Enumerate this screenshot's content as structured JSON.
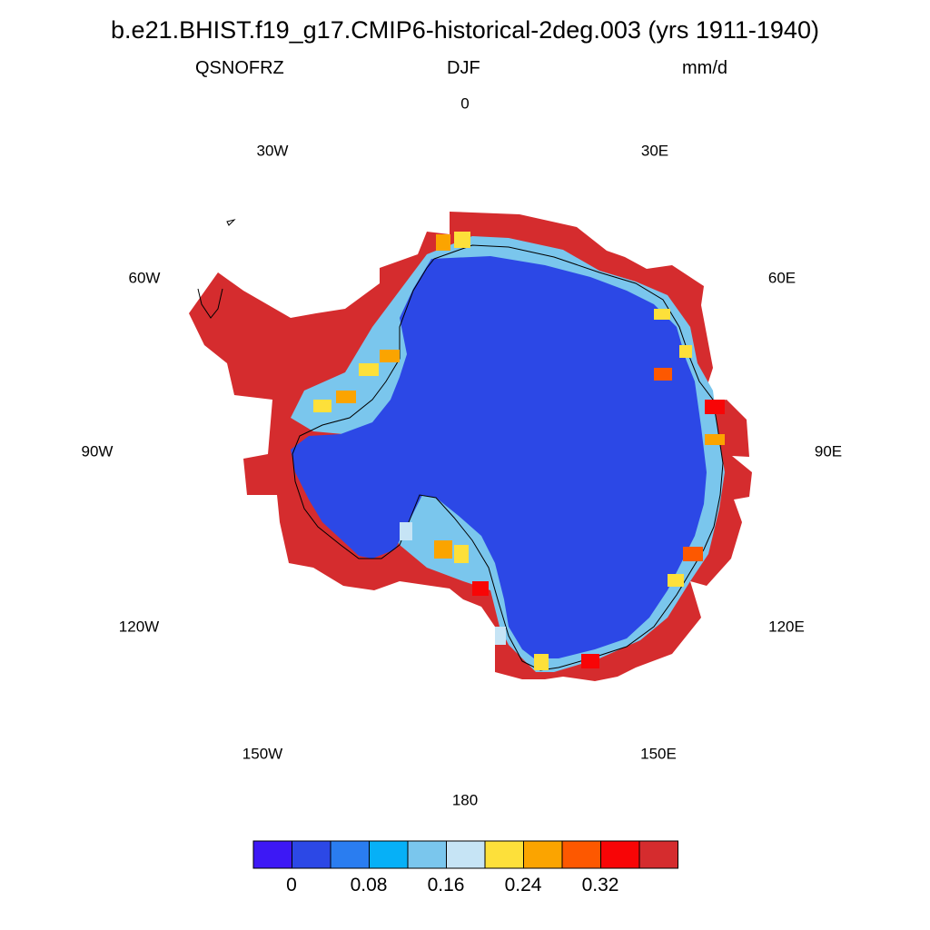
{
  "title": "b.e21.BHIST.f19_g17.CMIP6-historical-2deg.003 (yrs 1911-1940)",
  "variable": "QSNOFRZ",
  "season": "DJF",
  "units": "mm/d",
  "longitude_labels": {
    "l0": "0",
    "l30e": "30E",
    "l60e": "60E",
    "l90e": "90E",
    "l120e": "120E",
    "l150e": "150E",
    "l180": "180",
    "l150w": "150W",
    "l120w": "120W",
    "l90w": "90W",
    "l60w": "60W",
    "l30w": "30W"
  },
  "colorbar": {
    "colors": [
      "#3d18f5",
      "#2c48e6",
      "#2a7df0",
      "#06b0f7",
      "#7ac6ed",
      "#c6e4f5",
      "#fde03a",
      "#fba400",
      "#fd5800",
      "#f80506",
      "#d52c2e"
    ],
    "tick_labels": [
      "0",
      "0.08",
      "0.16",
      "0.24",
      "0.32"
    ]
  },
  "map_colors": {
    "ice_sheet": "#2c48e6",
    "ocean_margin": "#d52c2e",
    "coastline": "#000000"
  }
}
